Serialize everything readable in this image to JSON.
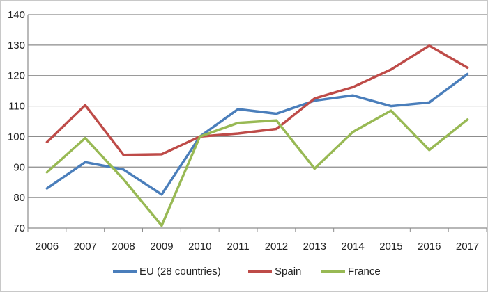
{
  "chart_data": {
    "type": "line",
    "title": "",
    "xlabel": "",
    "ylabel": "",
    "categories": [
      "2006",
      "2007",
      "2008",
      "2009",
      "2010",
      "2011",
      "2012",
      "2013",
      "2014",
      "2015",
      "2016",
      "2017"
    ],
    "ylim": [
      70,
      140
    ],
    "yticks": [
      70,
      80,
      90,
      100,
      110,
      120,
      130,
      140
    ],
    "grid": "horizontal",
    "legend_position": "bottom",
    "series": [
      {
        "name": "EU (28 countries)",
        "color": "#4a7ebb",
        "values": [
          83,
          91.6,
          89.2,
          81,
          100,
          109,
          107.5,
          111.8,
          113.5,
          110,
          111.2,
          120.5
        ]
      },
      {
        "name": "Spain",
        "color": "#be4b48",
        "values": [
          98.2,
          110.3,
          94,
          94.2,
          100,
          101,
          102.5,
          112.5,
          116.2,
          122,
          129.8,
          122.6
        ]
      },
      {
        "name": "France",
        "color": "#98b954",
        "values": [
          88.3,
          99.5,
          86,
          70.8,
          100,
          104.5,
          105.3,
          89.5,
          101.5,
          108.5,
          95.6,
          105.6
        ]
      }
    ]
  }
}
